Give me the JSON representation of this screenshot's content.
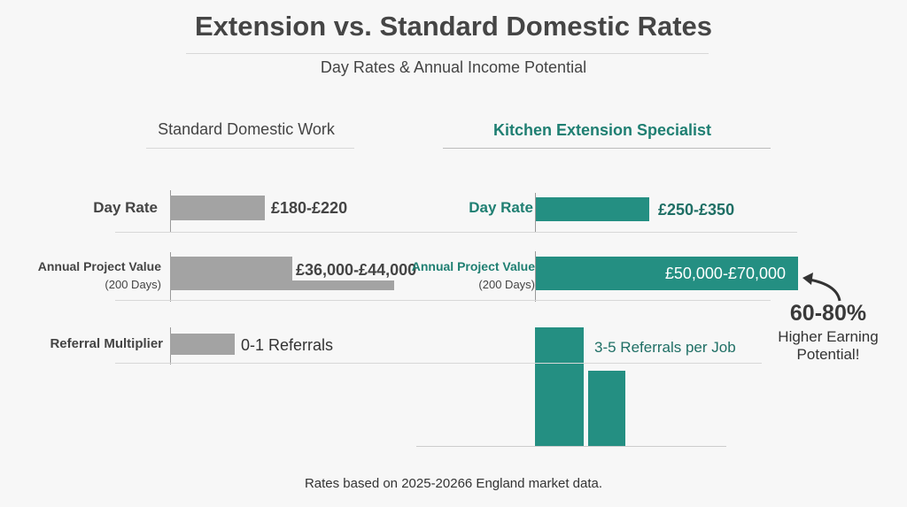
{
  "title": "Extension vs. Standard Domestic Rates",
  "subtitle": "Day Rates & Annual Income Potential",
  "footer": "Rates based on 2025-20266 England market data.",
  "colors": {
    "standard": "#a3a3a3",
    "specialist": "#248f82",
    "text": "#444444"
  },
  "chart_data": {
    "type": "bar",
    "categories": [
      "Day Rate",
      "Annual Project Value",
      "Referral Multiplier"
    ],
    "category_sublabels": [
      "",
      "(200 Days)",
      ""
    ],
    "series": [
      {
        "name": "Standard Domestic Work",
        "labels": [
          "£180-£220",
          "£36,000-£44,000",
          "0-1 Referrals"
        ],
        "ranges": [
          [
            180,
            220
          ],
          [
            36000,
            44000
          ],
          [
            0,
            1
          ]
        ]
      },
      {
        "name": "Kitchen Extension Specialist",
        "labels": [
          "£250-£350",
          "£50,000-£70,000",
          "3-5 Referrals per Job"
        ],
        "ranges": [
          [
            250,
            350
          ],
          [
            50000,
            70000
          ],
          [
            3,
            5
          ]
        ]
      }
    ],
    "annotation": {
      "value": "60-80%",
      "text1": "Higher Earning",
      "text2": "Potential!"
    }
  }
}
